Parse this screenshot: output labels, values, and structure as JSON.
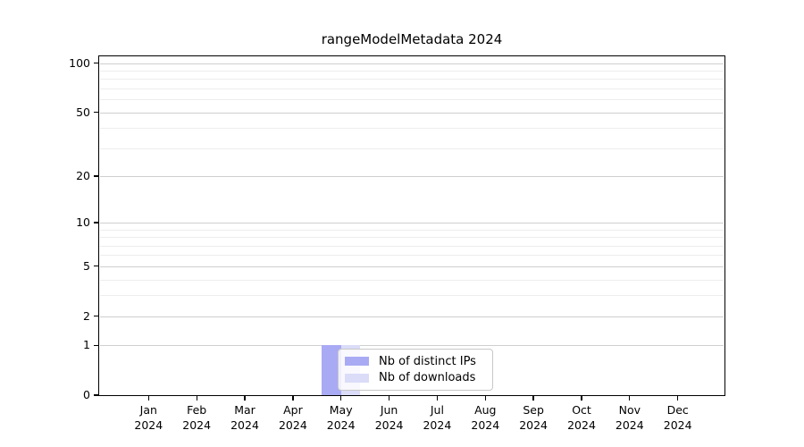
{
  "title": "rangeModelMetadata 2024",
  "chart_data": {
    "type": "bar",
    "title": "rangeModelMetadata 2024",
    "x_axis": {
      "categories": [
        "Jan",
        "Feb",
        "Mar",
        "Apr",
        "May",
        "Jun",
        "Jul",
        "Aug",
        "Sep",
        "Oct",
        "Nov",
        "Dec"
      ],
      "year_label": "2024"
    },
    "y_axis": {
      "scale": "log1p",
      "ticks_major": [
        0,
        1,
        2,
        5,
        10,
        20,
        50,
        100
      ],
      "ticks_minor": [
        3,
        4,
        6,
        7,
        8,
        9,
        30,
        40,
        60,
        70,
        80,
        90
      ],
      "ylim": [
        0,
        110
      ],
      "grid": true
    },
    "series": [
      {
        "name": "Nb of distinct IPs",
        "color": "#a9aaf4",
        "values": [
          0,
          0,
          0,
          0,
          1,
          0,
          0,
          0,
          0,
          0,
          0,
          0
        ]
      },
      {
        "name": "Nb of downloads",
        "color": "#dadcf8",
        "values": [
          0,
          0,
          0,
          0,
          1,
          0,
          0,
          0,
          0,
          0,
          0,
          0
        ]
      }
    ],
    "legend": {
      "position": "inside-bottom-center-left",
      "labels": [
        "Nb of distinct IPs",
        "Nb of downloads"
      ]
    }
  },
  "colors": {
    "background": "#ffffff",
    "spine": "#000000",
    "grid_major": "#cfcfcf",
    "grid_minor": "#ededed",
    "text": "#000000"
  }
}
